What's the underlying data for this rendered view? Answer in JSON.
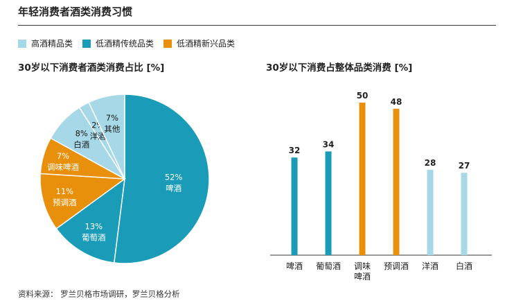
{
  "page_title": "年轻消费者酒类消费习惯",
  "legend": [
    {
      "label": "高酒精品类",
      "color": "#a6d8e8"
    },
    {
      "label": "低酒精传统品类",
      "color": "#1a9bb8"
    },
    {
      "label": "低酒精新兴品类",
      "color": "#e8900c"
    }
  ],
  "source": "资料来源：  罗兰贝格市场调研，罗兰贝格分析",
  "chart_data": [
    {
      "type": "pie",
      "title": "30岁以下消费者酒类消费占比 [%]",
      "slices": [
        {
          "label": "啤酒",
          "pct_label": "52%",
          "value": 52,
          "color": "#1a9bb8"
        },
        {
          "label": "葡萄酒",
          "pct_label": "13%",
          "value": 13,
          "color": "#1a9bb8"
        },
        {
          "label": "预调酒",
          "pct_label": "11%",
          "value": 11,
          "color": "#e8900c"
        },
        {
          "label": "调味啤酒",
          "pct_label": "7%",
          "value": 7,
          "color": "#e8900c"
        },
        {
          "label": "白酒",
          "pct_label": "8%",
          "value": 8,
          "color": "#a6d8e8"
        },
        {
          "label": "洋酒",
          "pct_label": "2%",
          "value": 2,
          "color": "#a6d8e8"
        },
        {
          "label": "其他",
          "pct_label": "7%",
          "value": 7,
          "color": "#a6d8e8"
        }
      ]
    },
    {
      "type": "bar",
      "title": "30岁以下消费占整体品类消费 [%]",
      "categories": [
        "啤酒",
        "葡萄酒",
        "调味\n啤酒",
        "预调酒",
        "洋酒",
        "白酒"
      ],
      "values": [
        32,
        34,
        50,
        48,
        28,
        27
      ],
      "colors": [
        "#1a9bb8",
        "#1a9bb8",
        "#e8900c",
        "#e8900c",
        "#a6d8e8",
        "#a6d8e8"
      ],
      "ylim": [
        0,
        55
      ]
    }
  ]
}
